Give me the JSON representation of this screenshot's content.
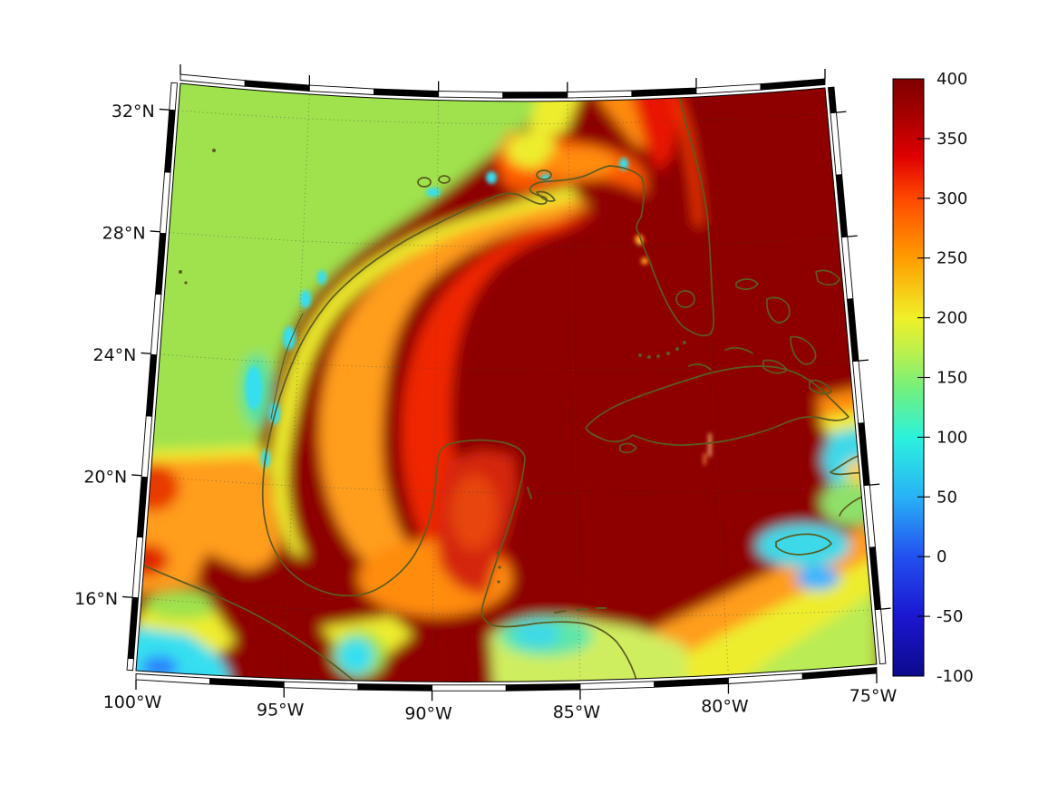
{
  "figure": {
    "kind": "geographic heatmap plot (GMT/matplotlib style)",
    "background": "#ffffff",
    "region_shown": "Gulf of Mexico and northwestern Caribbean",
    "title": ""
  },
  "chart_data": {
    "type": "heatmap",
    "projection": "conic (Lambert-conformal-like), curved top and bottom edges",
    "title": "",
    "xlabel": "",
    "ylabel": "",
    "x_axis": {
      "tick_labels": [
        "100°W",
        "95°W",
        "90°W",
        "85°W",
        "80°W",
        "75°W"
      ],
      "tick_values": [
        -100,
        -95,
        -90,
        -85,
        -80,
        -75
      ],
      "range_lon": [
        -100,
        -75
      ]
    },
    "y_axis": {
      "tick_labels": [
        "32°N",
        "28°N",
        "24°N",
        "20°N",
        "16°N"
      ],
      "tick_values": [
        32,
        28,
        24,
        20,
        16
      ],
      "range_lat_approx": [
        14.5,
        33.5
      ]
    },
    "grid": "dotted graticule every 5 deg lon / 4 deg lat",
    "colorbar": {
      "position": "right",
      "colormap": "jet",
      "range": [
        -100,
        400
      ],
      "tick_values": [
        400,
        350,
        300,
        250,
        200,
        150,
        100,
        50,
        0,
        -50,
        -100
      ],
      "tick_labels": [
        "400",
        "350",
        "300",
        "250",
        "200",
        "150",
        "100",
        "50",
        "0",
        "-50",
        "-100"
      ],
      "gradient_stops": [
        [
          0.0,
          "#7f0000"
        ],
        [
          0.06,
          "#a60000"
        ],
        [
          0.13,
          "#e00000"
        ],
        [
          0.2,
          "#ff4800"
        ],
        [
          0.3,
          "#ff9c00"
        ],
        [
          0.4,
          "#f0f028"
        ],
        [
          0.46,
          "#b8f050"
        ],
        [
          0.52,
          "#72f07e"
        ],
        [
          0.6,
          "#2cf2dc"
        ],
        [
          0.7,
          "#28b2f6"
        ],
        [
          0.8,
          "#2350f0"
        ],
        [
          0.9,
          "#1a17d0"
        ],
        [
          1.0,
          "#0d0a8c"
        ]
      ]
    },
    "field_summary": [
      {
        "region": "deep Gulf of Mexico, Straits of Florida, Atlantic, NW Caribbean",
        "value_est": ">=400 (saturated dark red)"
      },
      {
        "region": "Texas / US inland northwest corner",
        "value_est": "150-190 (green)"
      },
      {
        "region": "northern and western Gulf shelf",
        "value_est": "200-350 yellow-orange-red gradient"
      },
      {
        "region": "Texas coastal lagoons and Tampico coastal patch",
        "value_est": "80-130 (cyan spots)"
      },
      {
        "region": "NE Mexico inland strip",
        "value_est": "230-300 (orange)"
      },
      {
        "region": "Yucatan peninsula interior",
        "value_est": "330-370 (bright red)"
      },
      {
        "region": "SE Caribbean toward Jamaica / Hispaniola",
        "value_est": "100-300 gradient red to cyan"
      },
      {
        "region": "spots south of Jamaica and east of Cuba",
        "value_est": "30-80 (blue)"
      },
      {
        "region": "Honduras north coast patch",
        "value_est": "110-160 (cyan-green)"
      },
      {
        "region": "Pacific coast SW corner",
        "value_est": "60-120 cyan/blue with saturated dark-red highland blob"
      }
    ],
    "visible_geography": [
      "Gulf of Mexico",
      "Florida",
      "Yucatan Peninsula",
      "Cuba",
      "Jamaica",
      "Hispaniola (partial)",
      "Bahamas",
      "Central America",
      "Mexico"
    ],
    "coastline_color": "#5c5c20",
    "frame_style": "double-line fancy border with alternating black/white segments, outward ticks on all four sides, labels bottom and left only"
  },
  "palette": {
    "dark_red": "#8e0000",
    "red": "#ef2800",
    "orange": "#ff9d1e",
    "yellow": "#eded2e",
    "green_land": "#9fe24d",
    "yellow_green": "#b9ec55",
    "cyan": "#35dff0",
    "blue_spot": "#2f7dff",
    "coastline": "#5c5c20",
    "frame": "#000000",
    "label_color": "#111111"
  }
}
